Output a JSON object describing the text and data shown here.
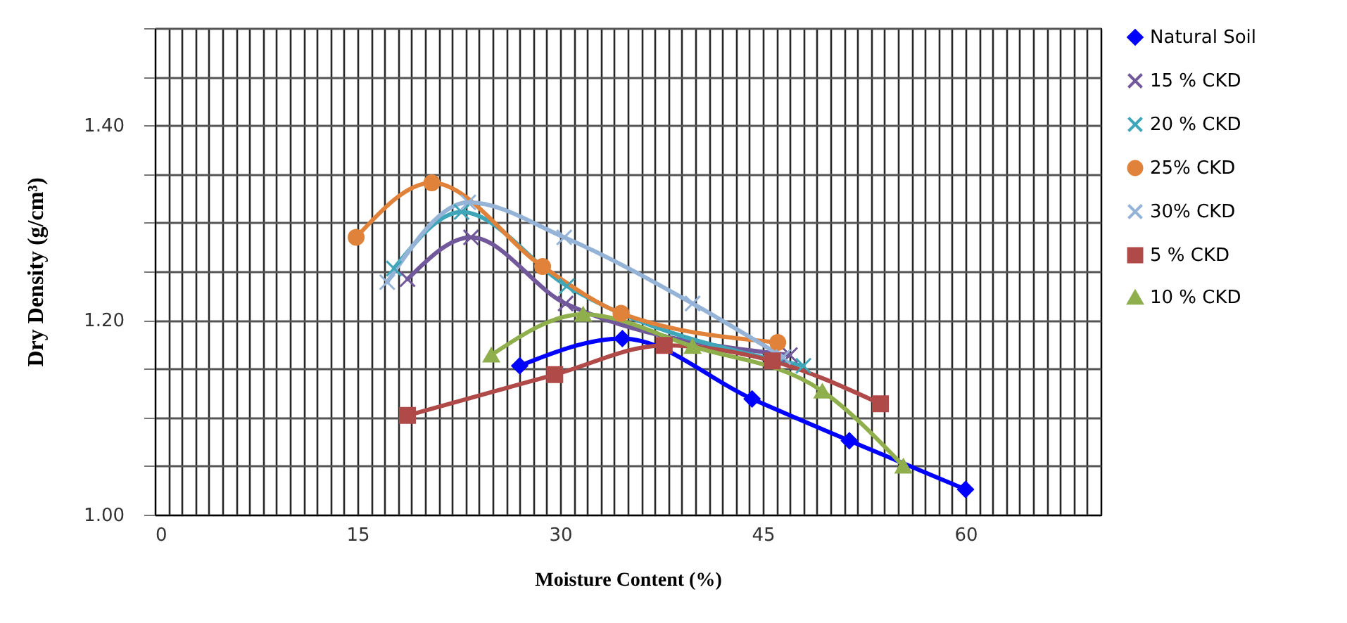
{
  "chart_data": {
    "type": "line",
    "xlabel": "Moisture Content (%)",
    "ylabel": "Dry Density (g/cm³)",
    "xlim": [
      0,
      70
    ],
    "xticks": [
      0,
      {
        "value": 1,
        "label": null
      },
      {
        "value": 2,
        "label": null
      },
      {
        "value": 3,
        "label": null
      },
      {
        "value": 4,
        "label": null
      },
      {
        "value": 5,
        "label": null
      },
      {
        "value": 6,
        "label": null
      },
      {
        "value": 7,
        "label": null
      },
      {
        "value": 8,
        "label": null
      },
      {
        "value": 9,
        "label": null
      },
      {
        "value": 10,
        "label": null
      },
      {
        "value": 11,
        "label": null
      },
      {
        "value": 12,
        "label": null
      },
      {
        "value": 13,
        "label": null
      },
      {
        "value": 14,
        "label": null
      },
      15,
      {
        "value": 16,
        "label": null
      },
      {
        "value": 17,
        "label": null
      },
      {
        "value": 18,
        "label": null
      },
      {
        "value": 19,
        "label": null
      },
      {
        "value": 20,
        "label": null
      },
      {
        "value": 21,
        "label": null
      },
      {
        "value": 22,
        "label": null
      },
      {
        "value": 23,
        "label": null
      },
      {
        "value": 24,
        "label": null
      },
      {
        "value": 25,
        "label": null
      },
      {
        "value": 26,
        "label": null
      },
      {
        "value": 27,
        "label": null
      },
      {
        "value": 28,
        "label": null
      },
      {
        "value": 29,
        "label": null
      },
      30,
      {
        "value": 31,
        "label": null
      },
      {
        "value": 32,
        "label": null
      },
      {
        "value": 33,
        "label": null
      },
      {
        "value": 34,
        "label": null
      },
      {
        "value": 35,
        "label": null
      },
      {
        "value": 36,
        "label": null
      },
      {
        "value": 37,
        "label": null
      },
      {
        "value": 38,
        "label": null
      },
      {
        "value": 39,
        "label": null
      },
      {
        "value": 40,
        "label": null
      },
      {
        "value": 41,
        "label": null
      },
      {
        "value": 42,
        "label": null
      },
      {
        "value": 43,
        "label": null
      },
      {
        "value": 44,
        "label": null
      },
      45,
      {
        "value": 46,
        "label": null
      },
      {
        "value": 47,
        "label": null
      },
      {
        "value": 48,
        "label": null
      },
      {
        "value": 49,
        "label": null
      },
      {
        "value": 50,
        "label": null
      },
      {
        "value": 51,
        "label": null
      },
      {
        "value": 52,
        "label": null
      },
      {
        "value": 53,
        "label": null
      },
      {
        "value": 54,
        "label": null
      },
      {
        "value": 55,
        "label": null
      },
      {
        "value": 56,
        "label": null
      },
      {
        "value": 57,
        "label": null
      },
      {
        "value": 58,
        "label": null
      },
      {
        "value": 59,
        "label": null
      },
      60,
      {
        "value": 61,
        "label": null
      },
      {
        "value": 62,
        "label": null
      },
      {
        "value": 63,
        "label": null
      },
      {
        "value": 64,
        "label": null
      },
      {
        "value": 65,
        "label": null
      },
      {
        "value": 66,
        "label": null
      },
      {
        "value": 67,
        "label": null
      },
      {
        "value": 68,
        "label": null
      },
      {
        "value": 69,
        "label": null
      },
      {
        "value": 70,
        "label": null
      }
    ],
    "ylim": [
      1.0,
      1.5
    ],
    "yticks": [
      {
        "value": 1.0,
        "label": "1.00"
      },
      {
        "value": 1.05,
        "label": null
      },
      {
        "value": 1.1,
        "label": null
      },
      {
        "value": 1.15,
        "label": null
      },
      {
        "value": 1.2,
        "label": "1.20"
      },
      {
        "value": 1.25,
        "label": null
      },
      {
        "value": 1.3,
        "label": null
      },
      {
        "value": 1.35,
        "label": null
      },
      {
        "value": 1.4,
        "label": "1.40"
      },
      {
        "value": 1.45,
        "label": null
      },
      {
        "value": 1.5,
        "label": null
      }
    ],
    "grid": true,
    "legend": "right",
    "line_style": "solid",
    "series": [
      {
        "name": "Natural Soil",
        "color": "#0000ff",
        "marker": "diamond",
        "x": [
          27.0,
          34.6,
          44.2,
          51.4,
          60.0
        ],
        "values": [
          1.153,
          1.181,
          1.119,
          1.076,
          1.026
        ]
      },
      {
        "name": "15 % CKD",
        "color": "#70589a",
        "marker": "cross",
        "x": [
          18.7,
          23.4,
          30.4,
          47.0
        ],
        "values": [
          1.242,
          1.285,
          1.217,
          1.164
        ]
      },
      {
        "name": "20 % CKD",
        "color": "#3ea6b8",
        "marker": "cross",
        "x": [
          17.7,
          22.7,
          30.5,
          48.0
        ],
        "values": [
          1.253,
          1.311,
          1.235,
          1.153
        ]
      },
      {
        "name": "25% CKD",
        "color": "#e0823a",
        "marker": "circle",
        "x": [
          14.9,
          20.5,
          28.7,
          34.5,
          46.1
        ],
        "values": [
          1.285,
          1.341,
          1.255,
          1.207,
          1.177
        ]
      },
      {
        "name": "30% CKD",
        "color": "#95b3d7",
        "marker": "cross",
        "x": [
          17.2,
          23.2,
          30.3,
          39.8,
          46.5
        ],
        "values": [
          1.239,
          1.321,
          1.285,
          1.217,
          1.162
        ]
      },
      {
        "name": "5 % CKD",
        "color": "#b04a48",
        "marker": "square",
        "x": [
          18.7,
          29.6,
          37.7,
          45.7,
          53.7
        ],
        "values": [
          1.102,
          1.144,
          1.174,
          1.158,
          1.114
        ]
      },
      {
        "name": "10 % CKD",
        "color": "#8fae4c",
        "marker": "triangle",
        "x": [
          24.9,
          31.7,
          39.8,
          49.4,
          55.4
        ],
        "values": [
          1.164,
          1.206,
          1.173,
          1.127,
          1.05
        ]
      }
    ]
  }
}
